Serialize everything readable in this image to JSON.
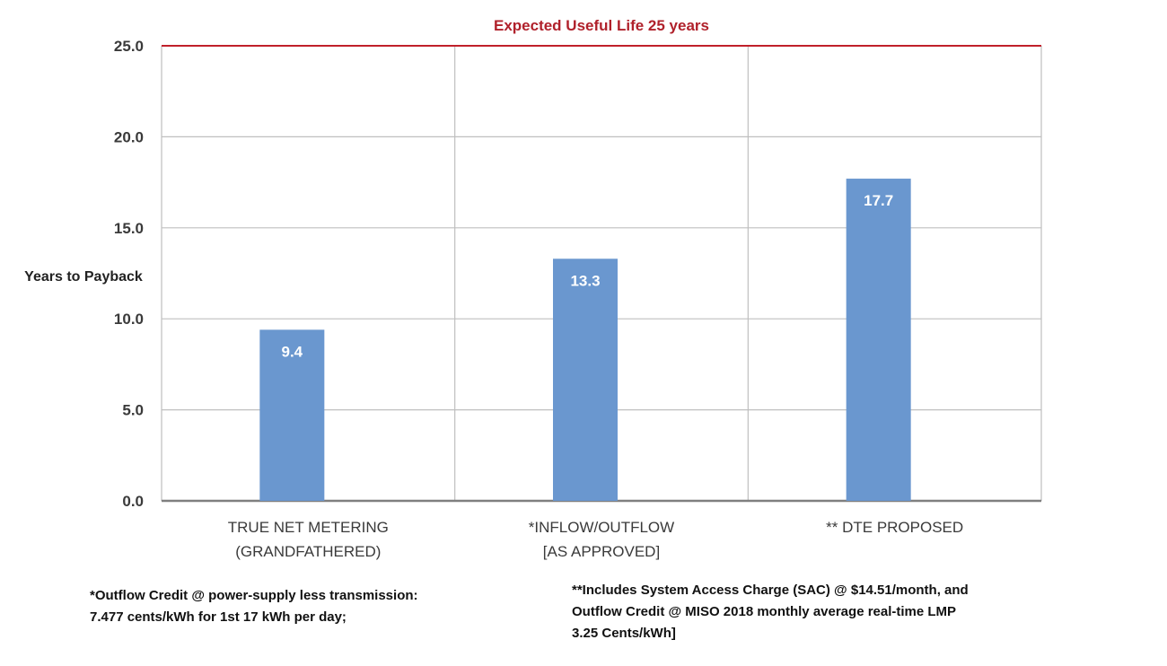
{
  "chart_data": {
    "type": "bar",
    "categories": [
      [
        "TRUE NET METERING",
        "(GRANDFATHERED)"
      ],
      [
        "*INFLOW/OUTFLOW",
        "[AS APPROVED]"
      ],
      [
        "** DTE PROPOSED"
      ]
    ],
    "values": [
      9.4,
      13.3,
      17.7
    ],
    "data_labels": [
      "9.4",
      "13.3",
      "17.7"
    ],
    "ylabel": "Years to Payback",
    "ylim": [
      0,
      25
    ],
    "yticks": [
      "0.0",
      "5.0",
      "10.0",
      "15.0",
      "20.0",
      "25.0"
    ],
    "grid": true,
    "reference_line": {
      "value": 25,
      "label": "Expected Useful Life 25  years",
      "color": "#c0202a"
    },
    "bar_color": "#6a97cf"
  },
  "footnotes": {
    "left": [
      "*Outflow Credit @ power-supply less transmission:",
      "7.477 cents/kWh for 1st 17 kWh per day;"
    ],
    "right": [
      "**Includes System Access Charge (SAC) @ $14.51/month, and",
      "Outflow Credit @ MISO 2018 monthly average real-time LMP",
      "3.25 Cents/kWh]"
    ]
  }
}
